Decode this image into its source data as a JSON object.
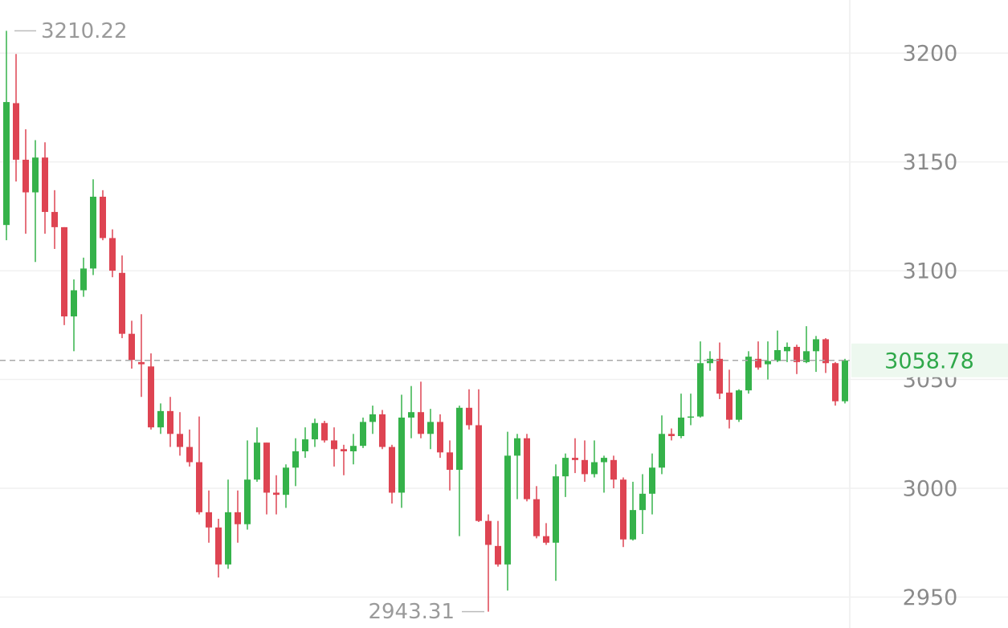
{
  "chart_data": {
    "type": "candlestick",
    "up_color": "#35b24a",
    "down_color": "#de4452",
    "last_label_color": "#2fa84a",
    "grid": true,
    "ylim": [
      2935.8,
      3224.4
    ],
    "yticks": [
      2950,
      3000,
      3050,
      3100,
      3150,
      3200
    ],
    "open": [
      3121,
      3177,
      3151,
      3136,
      3152,
      3127,
      3120,
      3079,
      3091,
      3101,
      3134,
      3115,
      3099,
      3071,
      3058,
      3056,
      3028,
      3035.5,
      3025,
      3019,
      3012,
      2989,
      2982,
      2965,
      2989,
      2983.5,
      3004,
      3021,
      2998,
      2997,
      3009.5,
      3017,
      3022.5,
      3030,
      3022,
      3018,
      3017,
      3019.5,
      3030.5,
      3034,
      3019,
      2998,
      3032.5,
      3035,
      3025,
      3030.5,
      3016.5,
      3008.5,
      3037,
      3029,
      2985,
      2973.5,
      2965,
      3015,
      3023,
      2995,
      2978,
      2975,
      3005.5,
      3014,
      3013,
      3006.5,
      3012,
      3013,
      3004,
      2976.5,
      2990,
      2997.5,
      3009.5,
      3025,
      3024,
      3032.5,
      3033,
      3057.5,
      3059.5,
      3044,
      3031.5,
      3045,
      3059.5,
      3057,
      3058.5,
      3063,
      3065,
      3058,
      3063,
      3068.5,
      3057.5,
      3040
    ],
    "high": [
      3210.22,
      3199.6,
      3165,
      3160,
      3159,
      3137,
      3120,
      3096,
      3106,
      3142,
      3137,
      3119,
      3107,
      3077,
      3080,
      3062,
      3039,
      3042,
      3035,
      3027,
      3033,
      2999,
      2986,
      3004,
      2999,
      3022,
      3028,
      3021,
      3006,
      3011,
      3023,
      3028,
      3032,
      3031,
      3028,
      3020,
      3025,
      3032.5,
      3038,
      3036,
      3020,
      3043,
      3047,
      3049,
      3036.5,
      3034,
      3022,
      3038,
      3045.5,
      3045.5,
      2988,
      2985,
      3026,
      3025,
      3025,
      3001,
      2984,
      3011,
      3016,
      3023,
      3022,
      3022,
      3015,
      3015,
      3005,
      3003,
      3006.5,
      3016,
      3033.5,
      3027.5,
      3043.5,
      3043.5,
      3067.5,
      3063,
      3067,
      3054.5,
      3045.5,
      3063,
      3067.5,
      3067.5,
      3072.5,
      3067,
      3066,
      3074.5,
      3070,
      3069,
      3058,
      3059.5
    ],
    "low": [
      3114,
      3141,
      3117,
      3104,
      3117,
      3110,
      3075,
      3063,
      3088,
      3098,
      3114,
      3097,
      3069,
      3055,
      3042,
      3027,
      3025,
      3019,
      3015,
      3010,
      2988,
      2975,
      2959,
      2963,
      2975,
      2981,
      3003,
      2988,
      2988,
      2991,
      3001,
      3014,
      3019,
      3021,
      3010,
      3006,
      3011,
      3018.5,
      3025,
      3018,
      2993,
      2991,
      3023,
      3023,
      3018,
      3014,
      2999,
      2978,
      3027,
      2984.5,
      2943.31,
      2964,
      2953,
      2995,
      2994,
      2977,
      2974,
      2957.5,
      2996,
      3007,
      3003,
      3005,
      2998,
      3000,
      2973,
      2976,
      2979,
      2988,
      3006.5,
      3022,
      3023,
      3029,
      3032.5,
      3054,
      3041,
      3027.5,
      3030.5,
      3043.5,
      3054.5,
      3050,
      3058,
      3058,
      3052.5,
      3057.5,
      3053.5,
      3053,
      3038,
      3039
    ],
    "close": [
      3177.5,
      3151,
      3136,
      3152,
      3127,
      3120,
      3079,
      3091,
      3101,
      3134,
      3115,
      3100,
      3071,
      3059,
      3057,
      3028,
      3035.5,
      3025,
      3019,
      3012,
      2989,
      2982,
      2965,
      2989,
      2983.5,
      3004,
      3021,
      2998,
      2997,
      3009.5,
      3017,
      3022.5,
      3030,
      3022,
      3018,
      3017,
      3019.5,
      3030.5,
      3034,
      3019,
      2998,
      3032.5,
      3035,
      3025,
      3030.5,
      3016.5,
      3008.5,
      3037,
      3029,
      2985,
      2974,
      2965,
      3015,
      3023,
      2995,
      2978,
      2975,
      3005.5,
      3014,
      3013,
      3006.5,
      3012,
      3014,
      3004,
      2976.5,
      2990,
      2997.5,
      3009.5,
      3025,
      3024,
      3032.5,
      3033,
      3057.5,
      3059.5,
      3043.5,
      3031.5,
      3045,
      3060.5,
      3055.5,
      3058.5,
      3063.5,
      3065,
      3058,
      3063,
      3068.5,
      3057.5,
      3040,
      3058.78
    ]
  }
}
